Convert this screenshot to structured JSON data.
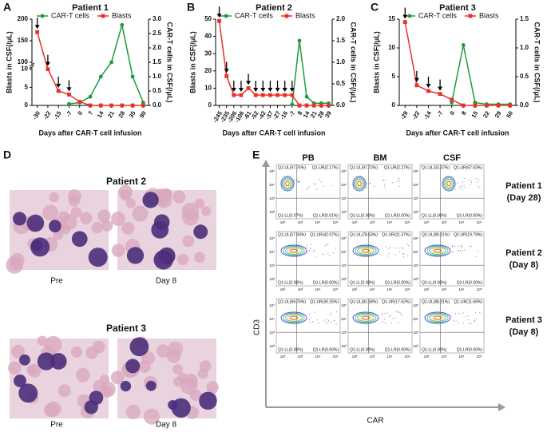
{
  "chart_data": [
    {
      "type": "line",
      "panel_label": "A",
      "title": "Patient 1",
      "x_label": "Days after CAR-T cell infusion",
      "y_label": "Blasts in CSF(/μL)",
      "y2_label": "CAR-T cells in CSF(/μL)",
      "categories": [
        "-30",
        "-22",
        "-15",
        "-7",
        "0",
        "7",
        "14",
        "21",
        "28",
        "35",
        "90"
      ],
      "series": [
        {
          "name": "CAR-T cells",
          "color": "#1e9b3c",
          "axis": "y2",
          "values": [
            null,
            null,
            null,
            0.05,
            0.1,
            0.3,
            1.0,
            1.5,
            2.8,
            1.0,
            0.1
          ]
        },
        {
          "name": "Blasts",
          "color": "#e8312a",
          "values": [
            170,
            10,
            4,
            3,
            1,
            0,
            0,
            0,
            0,
            0,
            0
          ]
        }
      ],
      "ylim": [
        0,
        200
      ],
      "ybreak": [
        10,
        100
      ],
      "yticks": [
        0,
        5,
        10,
        100,
        150,
        200
      ],
      "y2lim": [
        0,
        3
      ],
      "y2ticks": [
        {
          "value": 0,
          "label": "0.0"
        },
        0.5,
        {
          "value": 1,
          "label": "1.0"
        },
        1.5,
        {
          "value": 2,
          "label": "2.0"
        },
        2.5,
        {
          "value": 3,
          "label": "3.0"
        }
      ]
    },
    {
      "type": "line",
      "panel_label": "B",
      "title": "Patient 2",
      "x_label": "Days after CAR-T cell infusion",
      "y_label": "Blasts in CSF(/μL)",
      "y2_label": "CAR-T cells in CSF(/μL)",
      "categories": [
        "-245",
        "-235",
        "-206",
        "-106",
        "-61",
        "-52",
        "-42",
        "-37",
        "-27",
        "-16",
        "-7",
        "8",
        "14",
        "21",
        "28",
        "39"
      ],
      "series": [
        {
          "name": "CAR-T cells",
          "color": "#1e9b3c",
          "axis": "y2",
          "values": [
            null,
            null,
            null,
            null,
            null,
            null,
            null,
            null,
            null,
            null,
            0.02,
            1.5,
            0.2,
            0.05,
            0.05,
            0.05
          ]
        },
        {
          "name": "Blasts",
          "color": "#e8312a",
          "values": [
            49,
            17,
            6,
            6,
            10,
            6,
            6,
            6,
            6,
            6,
            6,
            0,
            0,
            0,
            0,
            0
          ]
        }
      ],
      "ylim": [
        0,
        50
      ],
      "yticks": [
        0,
        10,
        20,
        30,
        40,
        50
      ],
      "y2lim": [
        0,
        2
      ],
      "y2ticks": [
        {
          "value": 0,
          "label": "0.0"
        },
        0.5,
        {
          "value": 1,
          "label": "1.0"
        },
        1.5,
        {
          "value": 2,
          "label": "2.0"
        }
      ]
    },
    {
      "type": "line",
      "panel_label": "C",
      "title": "Patient 3",
      "x_label": "Days after CAR-T cell infusion",
      "y_label": "Blasts in CSF(/μL)",
      "y2_label": "CAR-T cells in CSF(/μL)",
      "categories": [
        "-29",
        "-22",
        "-14",
        "-7",
        "0",
        "8",
        "15",
        "22",
        "29",
        "50"
      ],
      "series": [
        {
          "name": "CAR-T cells",
          "color": "#1e9b3c",
          "axis": "y2",
          "values": [
            null,
            null,
            null,
            null,
            0.05,
            1.05,
            0.05,
            0.02,
            0.02,
            0.02
          ]
        },
        {
          "name": "Blasts",
          "color": "#e8312a",
          "values": [
            14.5,
            3.5,
            2.5,
            2,
            1,
            0,
            0,
            0,
            0,
            0
          ]
        }
      ],
      "ylim": [
        0,
        15
      ],
      "yticks": [
        0,
        5,
        10,
        15
      ],
      "y2lim": [
        0,
        1.5
      ],
      "y2ticks": [
        {
          "value": 0,
          "label": "0.0"
        },
        0.5,
        {
          "value": 1,
          "label": "1.0"
        },
        1.5
      ]
    }
  ],
  "panel_d": {
    "panel_label": "D",
    "groups": [
      {
        "title": "Patient 2",
        "captions": [
          "Pre",
          "Day 8"
        ]
      },
      {
        "title": "Patient 3",
        "captions": [
          "Pre",
          "Day 8"
        ]
      }
    ]
  },
  "panel_e": {
    "panel_label": "E",
    "columns": [
      "PB",
      "BM",
      "CSF"
    ],
    "y_label": "CD3",
    "x_label": "CAR",
    "plot_ticks": [
      "10²",
      "10³",
      "10⁴",
      "10⁵"
    ],
    "rows": [
      {
        "name": "Patient 1",
        "day": "(Day 28)",
        "plots": [
          {
            "ul": "Q1-UL(97.76%)",
            "ur": "Q1-UR(2.17%)",
            "ll": "Q1-LL(0.07%)",
            "lr": "Q1-LR(0.01%)"
          },
          {
            "ul": "Q1-UL(97.73%)",
            "ur": "Q1-UR(2.27%)",
            "ll": "Q1-LL(0.00%)",
            "lr": "Q1-LR(0.00%)"
          },
          {
            "ul": "Q1-UL(32.37%)",
            "ur": "Q1-UR(67.63%)",
            "ll": "Q1-LL(0.00%)",
            "lr": "Q1-LR(0.00%)"
          }
        ]
      },
      {
        "name": "Patient 2",
        "day": "(Day 8)",
        "plots": [
          {
            "ul": "Q1-UL(57.93%)",
            "ur": "Q1-UR(42.07%)",
            "ll": "Q1-LL(0.00%)",
            "lr": "Q1-LR(0.00%)"
          },
          {
            "ul": "Q1-UL(78.63%)",
            "ur": "Q1-UR(21.37%)",
            "ll": "Q1-LL(0.00%)",
            "lr": "Q1-LR(0.00%)"
          },
          {
            "ul": "Q2-UL(80.21%)",
            "ur": "Q2-UR(19.79%)",
            "ll": "Q2-LL(0.00%)",
            "lr": "Q2-LR(0.00%)"
          }
        ]
      },
      {
        "name": "Patient 3",
        "day": "(Day 8)",
        "plots": [
          {
            "ul": "Q1-UL(69.75%)",
            "ur": "Q1-UR(30.25%)",
            "ll": "Q1-LL(0.00%)",
            "lr": "Q1-LR(0.00%)"
          },
          {
            "ul": "Q1-UL(82.38%)",
            "ur": "Q1-UR(17.62%)",
            "ll": "Q1-LL(0.00%)",
            "lr": "Q1-LR(0.00%)"
          },
          {
            "ul": "Q1-UL(88.31%)",
            "ur": "Q1-UR(11.69%)",
            "ll": "Q1-LL(0.00%)",
            "lr": "Q1-LR(0.00%)"
          }
        ]
      }
    ]
  }
}
